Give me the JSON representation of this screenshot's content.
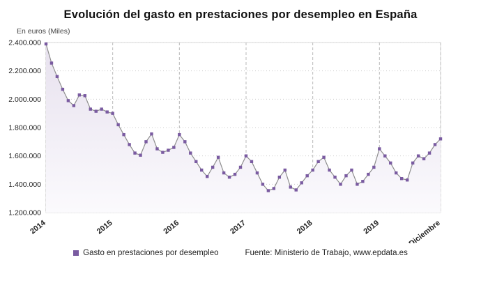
{
  "page": {
    "title": "Evolución del gasto en prestaciones por desempleo en España",
    "y_unit_label": "En euros (Miles)"
  },
  "legend": {
    "label": "Gasto en prestaciones por desempleo",
    "source": "Fuente: Ministerio de Trabajo, www.epdata.es"
  },
  "chart_data": {
    "type": "area",
    "title": "Evolución del gasto en prestaciones por desempleo en España",
    "xlabel": "",
    "ylabel": "En euros (Miles)",
    "ylim": [
      1200000,
      2400000
    ],
    "yticks": [
      1200000,
      1400000,
      1600000,
      1800000,
      2000000,
      2200000,
      2400000
    ],
    "ytick_labels": [
      "1.200.000",
      "1.400.000",
      "1.600.000",
      "1.800.000",
      "2.000.000",
      "2.200.000",
      "2.400.000"
    ],
    "x_tick_indices": [
      0,
      12,
      24,
      36,
      48,
      60,
      71
    ],
    "x_tick_labels": [
      "2014",
      "2015",
      "2016",
      "2017",
      "2018",
      "2019",
      "Diciembre"
    ],
    "grid": true,
    "legend_position": "bottom",
    "series": [
      {
        "name": "Gasto en prestaciones por desempleo",
        "values": [
          2390000,
          2255000,
          2160000,
          2070000,
          1990000,
          1955000,
          2030000,
          2025000,
          1930000,
          1915000,
          1930000,
          1910000,
          1900000,
          1820000,
          1750000,
          1680000,
          1620000,
          1605000,
          1700000,
          1755000,
          1650000,
          1625000,
          1640000,
          1660000,
          1750000,
          1700000,
          1620000,
          1560000,
          1500000,
          1455000,
          1520000,
          1590000,
          1480000,
          1450000,
          1470000,
          1520000,
          1600000,
          1560000,
          1480000,
          1400000,
          1355000,
          1370000,
          1450000,
          1500000,
          1380000,
          1360000,
          1410000,
          1460000,
          1500000,
          1560000,
          1590000,
          1500000,
          1450000,
          1400000,
          1460000,
          1500000,
          1400000,
          1420000,
          1470000,
          1520000,
          1650000,
          1600000,
          1550000,
          1480000,
          1440000,
          1430000,
          1550000,
          1600000,
          1580000,
          1620000,
          1680000,
          1720000
        ]
      }
    ],
    "colors": {
      "marker": "#7a5ba1",
      "line": "#8d8d8d",
      "area_top": "#e7e1ee",
      "area_bottom": "#fbfafd",
      "grid": "#cccccc",
      "year_grid": "#b9b9b9",
      "axis_text": "#222222",
      "border": "#d8d8d8"
    }
  }
}
